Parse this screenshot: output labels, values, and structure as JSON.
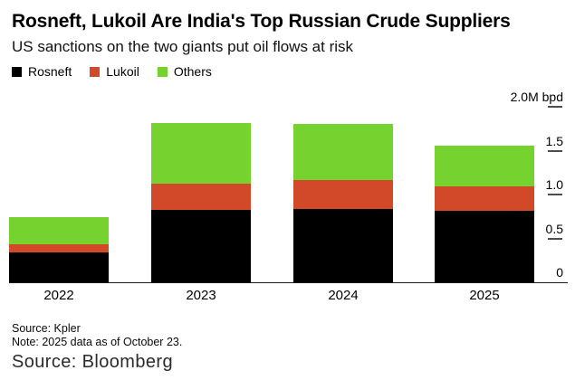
{
  "header": {
    "title": "Rosneft, Lukoil Are India's Top Russian Crude Suppliers",
    "subtitle": "US sanctions on the two giants put oil flows at risk"
  },
  "legend": [
    {
      "label": "Rosneft",
      "color": "#000000"
    },
    {
      "label": "Lukoil",
      "color": "#d2492a"
    },
    {
      "label": "Others",
      "color": "#76d22e"
    }
  ],
  "chart_data": {
    "type": "bar",
    "stacked": true,
    "title": "Rosneft, Lukoil Are India's Top Russian Crude Suppliers",
    "subtitle": "US sanctions on the two giants put oil flows at risk",
    "categories": [
      "2022",
      "2023",
      "2024",
      "2025"
    ],
    "series": [
      {
        "name": "Rosneft",
        "color": "#000000",
        "values": [
          0.34,
          0.83,
          0.84,
          0.82
        ]
      },
      {
        "name": "Lukoil",
        "color": "#d2492a",
        "values": [
          0.09,
          0.29,
          0.33,
          0.27
        ]
      },
      {
        "name": "Others",
        "color": "#76d22e",
        "values": [
          0.31,
          0.7,
          0.63,
          0.47
        ]
      }
    ],
    "totals": [
      0.74,
      1.82,
      1.8,
      1.56
    ],
    "unit": "M bpd",
    "ylabel": "",
    "xlabel": "",
    "ylim": [
      0,
      2.0
    ],
    "yticks": [
      0,
      0.5,
      1.0,
      1.5,
      2.0
    ],
    "ytick_labels": [
      "0",
      "0.5",
      "1.0",
      "1.5",
      "2.0M bpd"
    ],
    "axis_side": "right",
    "legend_position": "top-left",
    "grid": false
  },
  "footer": {
    "source_note": "Source: Kpler",
    "data_note": "Note: 2025 data as of October 23.",
    "attribution": "Source: Bloomberg"
  }
}
